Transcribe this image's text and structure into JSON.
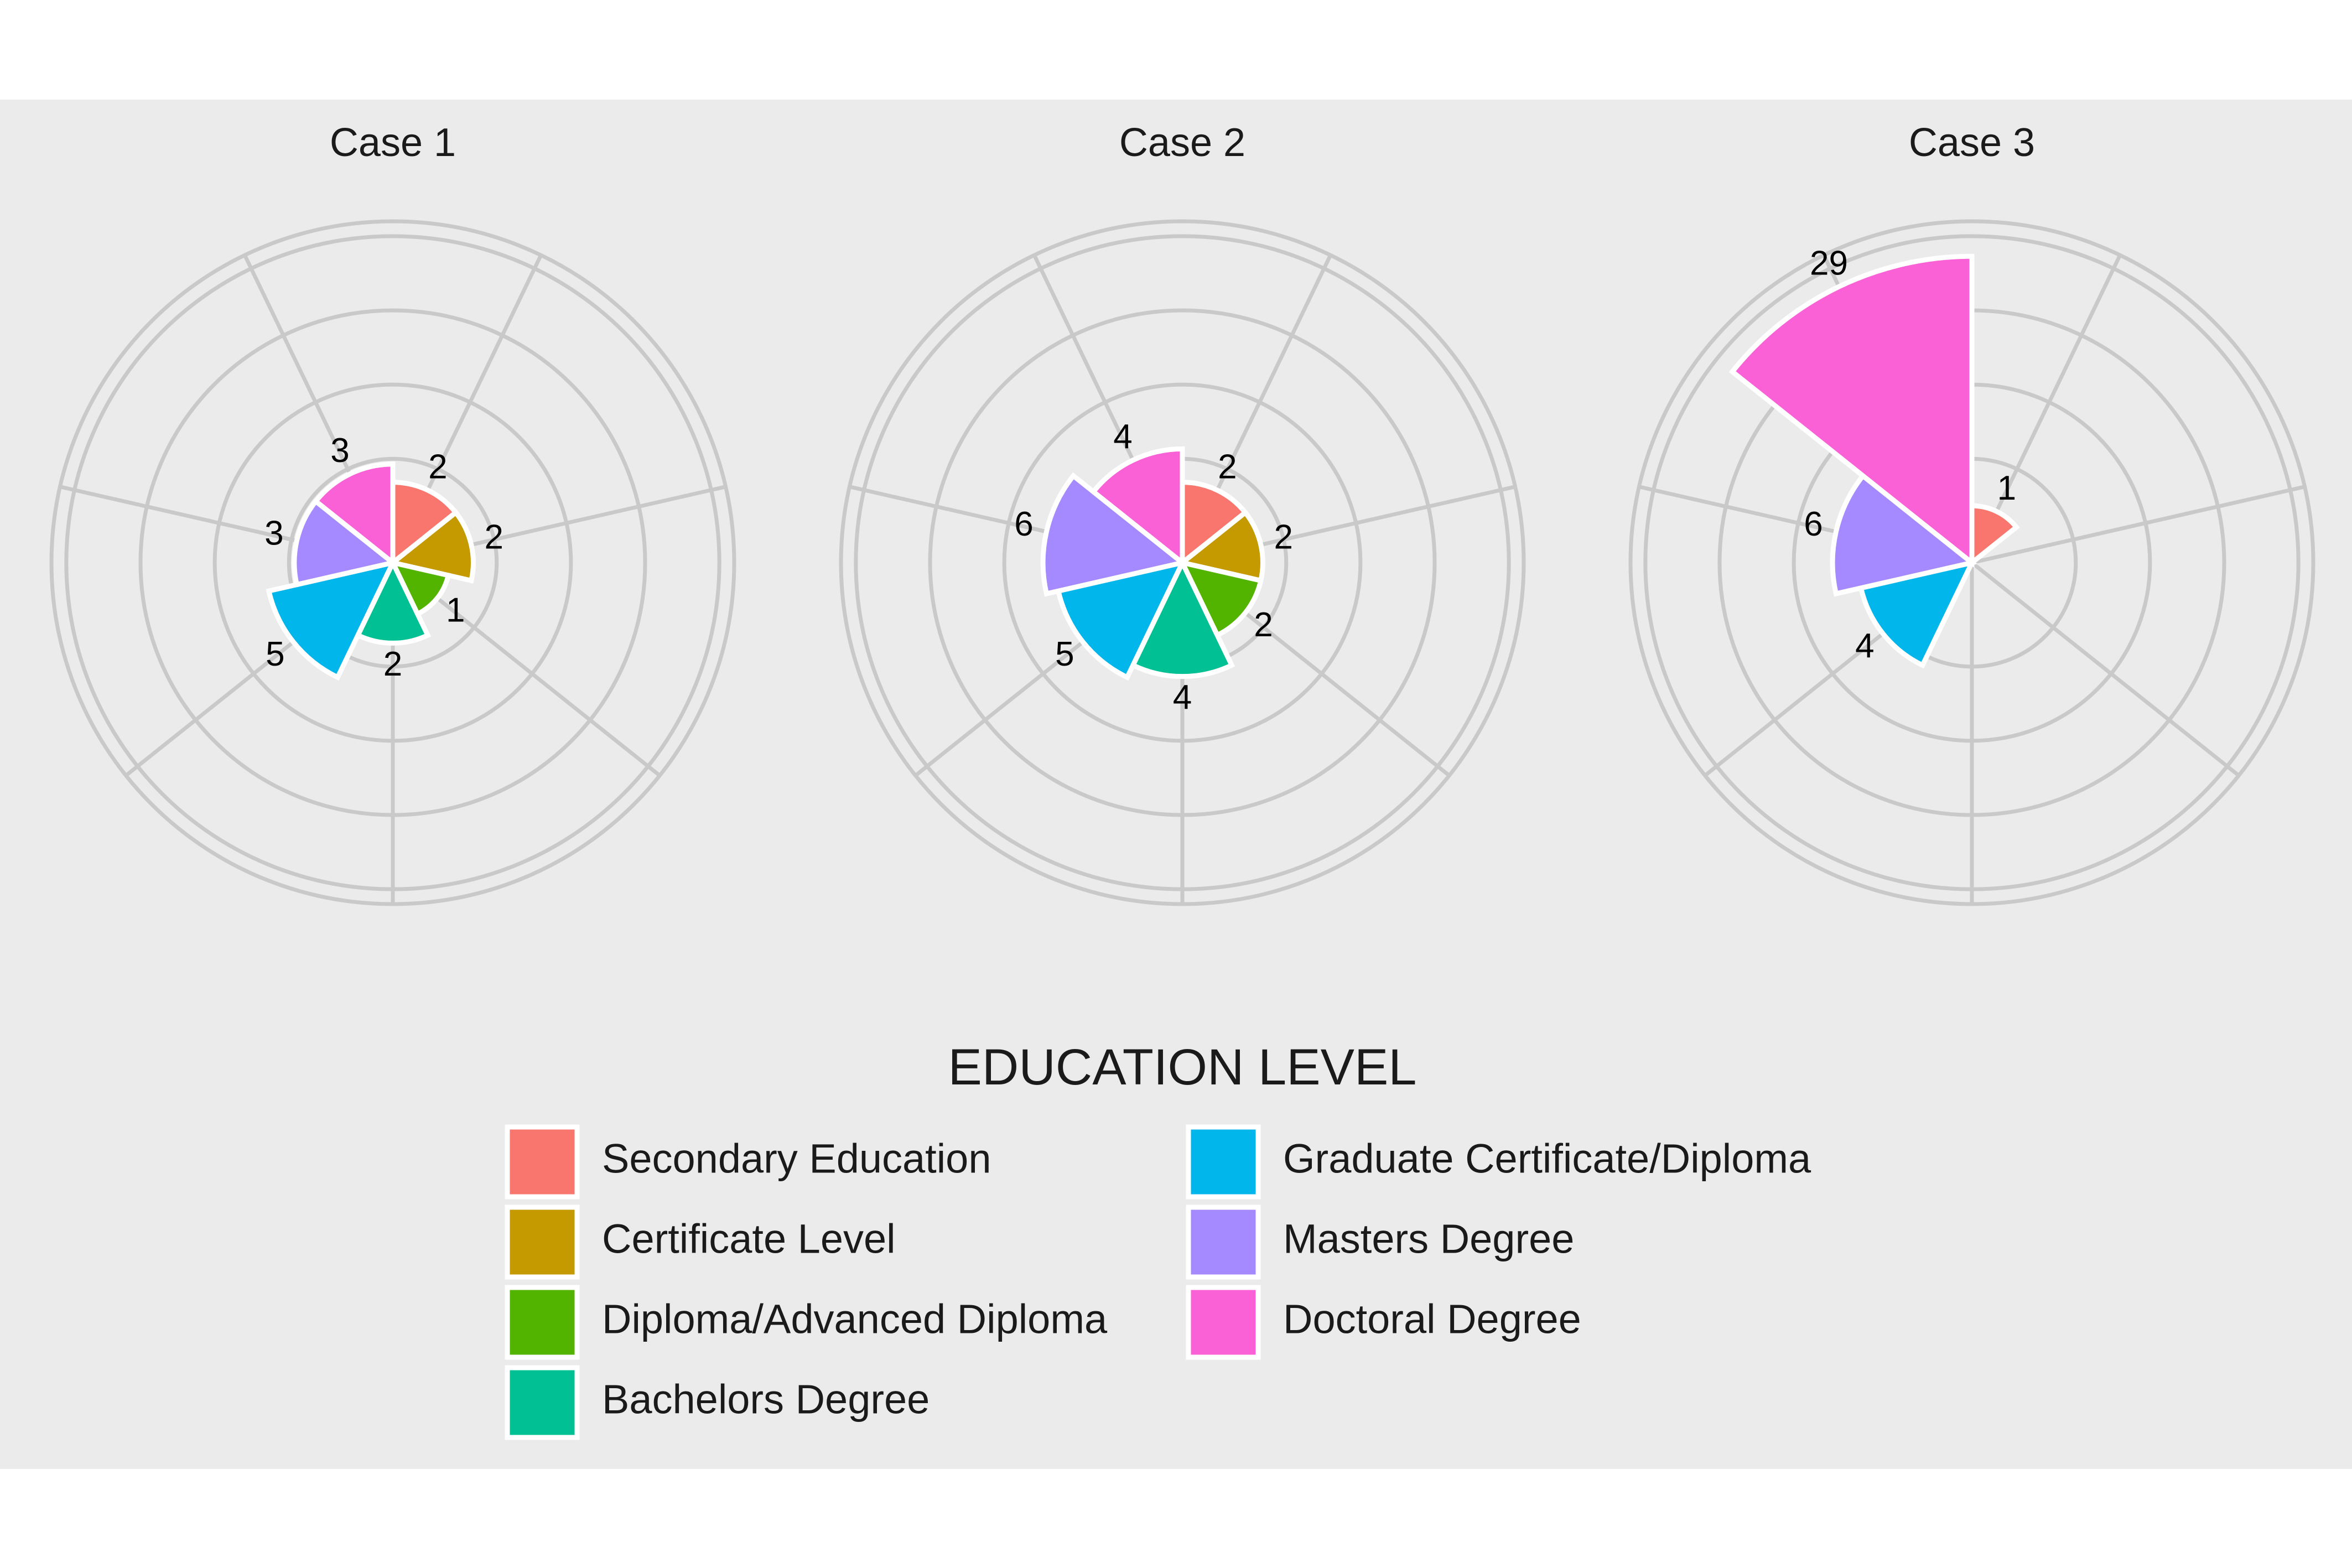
{
  "chart_data": {
    "type": "polar-bar",
    "legend_title": "EDUCATION LEVEL",
    "legend_position": "bottom",
    "grid": true,
    "categories": [
      "Secondary Education",
      "Certificate Level",
      "Diploma/Advanced Diploma",
      "Bachelors Degree",
      "Graduate Certificate/Diploma",
      "Masters Degree",
      "Doctoral Degree"
    ],
    "colors": [
      "#F8766D",
      "#C49A00",
      "#53B400",
      "#00C094",
      "#00B6EB",
      "#A58AFF",
      "#FB61D7"
    ],
    "radial_max": 36,
    "facets": [
      {
        "title": "Case 1",
        "values": [
          2,
          2,
          1,
          2,
          5,
          3,
          3
        ]
      },
      {
        "title": "Case 2",
        "values": [
          2,
          2,
          2,
          4,
          5,
          6,
          4
        ]
      },
      {
        "title": "Case 3",
        "values": [
          1,
          null,
          null,
          null,
          4,
          6,
          29
        ]
      }
    ]
  }
}
